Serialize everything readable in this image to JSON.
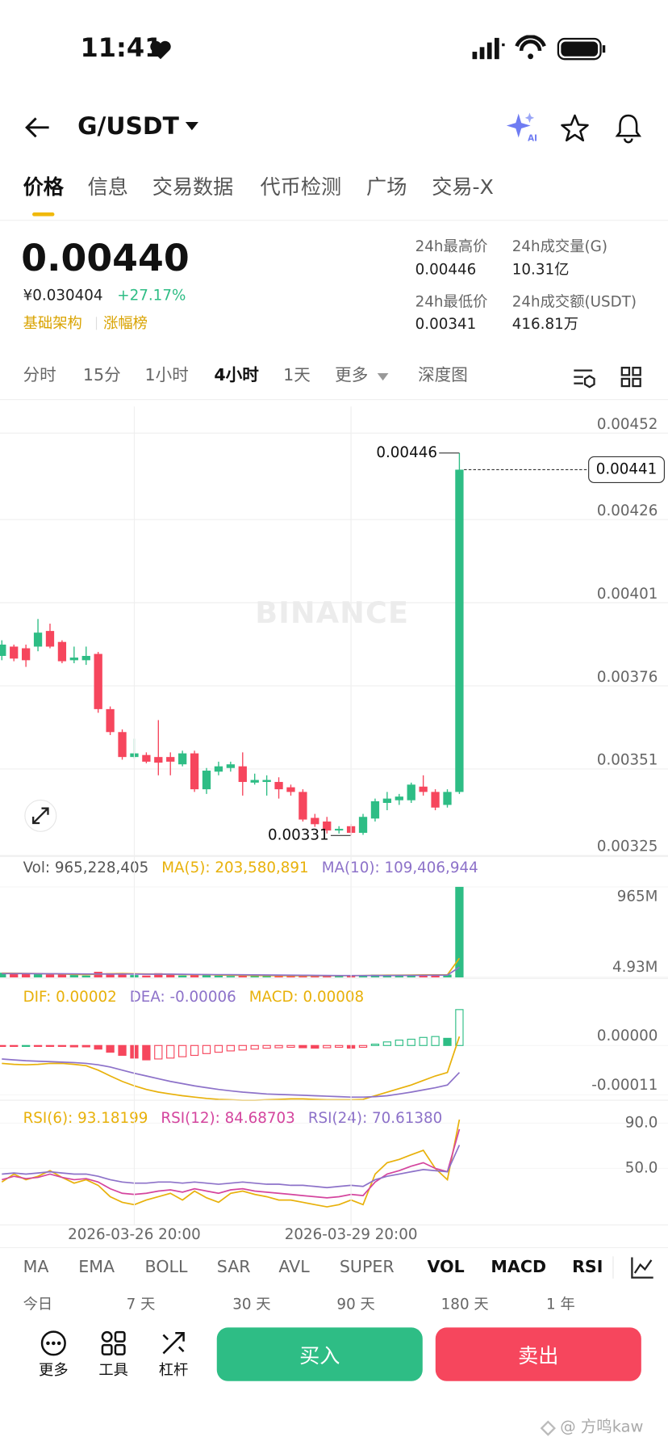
{
  "status_bar": {
    "time": "11:41"
  },
  "header": {
    "pair": "G/USDT"
  },
  "tabs": [
    "价格",
    "信息",
    "交易数据",
    "代币检测",
    "广场",
    "交易-X"
  ],
  "ticker": {
    "price": "0.00440",
    "cny": "¥0.030404",
    "change": "+27.17%",
    "tags": [
      "基础架构",
      "涨幅榜"
    ],
    "stats": [
      {
        "label": "24h最高价",
        "value": "0.00446"
      },
      {
        "label": "24h成交量(G)",
        "value": "10.31亿"
      },
      {
        "label": "24h最低价",
        "value": "0.00341"
      },
      {
        "label": "24h成交额(USDT)",
        "value": "416.81万"
      }
    ]
  },
  "intervals": [
    "分时",
    "15分",
    "1小时",
    "4小时",
    "1天",
    "更多",
    "深度图"
  ],
  "chart_data": [
    {
      "type": "candlestick",
      "watermark": "BINANCE",
      "up_color": "#2ebd85",
      "down_color": "#f6465d",
      "grid": true,
      "ylim": [
        0.00325,
        0.0046
      ],
      "yticks": [
        0.00452,
        0.00426,
        0.00401,
        0.00376,
        0.00351,
        0.00325
      ],
      "max_label": 0.00446,
      "min_label": 0.00331,
      "last_price": 0.00441,
      "open": [
        0.00385,
        0.003878,
        0.003873,
        0.003878,
        0.003925,
        0.003892,
        0.003837,
        0.003837,
        0.003856,
        0.00369,
        0.003621,
        0.003546,
        0.003552,
        0.003546,
        0.003546,
        0.003524,
        0.003557,
        0.003449,
        0.003502,
        0.003513,
        0.003518,
        0.003469,
        0.003471,
        0.003471,
        0.003455,
        0.003441,
        0.003363,
        0.003352,
        0.003325,
        0.003338,
        0.003318,
        0.003361,
        0.003408,
        0.003416,
        0.003416,
        0.003457,
        0.003441,
        0.003402,
        0.003441
      ],
      "high": [
        0.003897,
        0.003884,
        0.003884,
        0.003961,
        0.003947,
        0.003897,
        0.003878,
        0.003878,
        0.003862,
        0.003698,
        0.003629,
        0.003601,
        0.00356,
        0.003657,
        0.00356,
        0.003565,
        0.003565,
        0.003513,
        0.003532,
        0.003532,
        0.00356,
        0.003496,
        0.003491,
        0.003485,
        0.003463,
        0.003449,
        0.003375,
        0.003366,
        0.003338,
        0.003345,
        0.003375,
        0.003421,
        0.003441,
        0.003435,
        0.003469,
        0.003491,
        0.003449,
        0.003449,
        0.00446
      ],
      "low": [
        0.003837,
        0.003834,
        0.003817,
        0.003864,
        0.003873,
        0.003828,
        0.003828,
        0.003823,
        0.003679,
        0.003612,
        0.003538,
        0.003541,
        0.003527,
        0.003491,
        0.003491,
        0.003518,
        0.003441,
        0.003435,
        0.003491,
        0.003502,
        0.00343,
        0.003463,
        0.00343,
        0.003421,
        0.00343,
        0.003352,
        0.003336,
        0.003316,
        0.003316,
        0.00331,
        0.003312,
        0.003352,
        0.003386,
        0.003402,
        0.003408,
        0.00343,
        0.003386,
        0.003394,
        0.003435
      ],
      "close": [
        0.003884,
        0.003842,
        0.003837,
        0.00392,
        0.003878,
        0.003834,
        0.003845,
        0.00385,
        0.00369,
        0.003621,
        0.003546,
        0.003557,
        0.003532,
        0.003529,
        0.003532,
        0.003557,
        0.003449,
        0.003505,
        0.003518,
        0.003524,
        0.003471,
        0.003477,
        0.003477,
        0.003449,
        0.003441,
        0.003358,
        0.003344,
        0.003325,
        0.00333,
        0.003318,
        0.003366,
        0.003413,
        0.003421,
        0.003427,
        0.003463,
        0.003441,
        0.003394,
        0.003441,
        0.00441
      ]
    },
    {
      "type": "bar",
      "ylim": [
        0,
        965228405
      ],
      "yticks": [
        {
          "value": 965228405,
          "label": "965M"
        },
        {
          "value": 4930000,
          "label": "4.93M"
        }
      ],
      "series": [
        {
          "name": "Vol: 965,228,405",
          "color": "#555555",
          "values": [
            50000000,
            45000000,
            40000000,
            35000000,
            30000000,
            40000000,
            25000000,
            20000000,
            60000000,
            45000000,
            40000000,
            25000000,
            20000000,
            45000000,
            35000000,
            20000000,
            30000000,
            25000000,
            20000000,
            15000000,
            25000000,
            15000000,
            15000000,
            20000000,
            15000000,
            25000000,
            20000000,
            20000000,
            15000000,
            20000000,
            25000000,
            30000000,
            25000000,
            20000000,
            25000000,
            30000000,
            25000000,
            30000000,
            965228405
          ]
        },
        {
          "name": "MA(5): 203,580,891",
          "color": "#e8b10b",
          "values": [
            45000000,
            44000000,
            42000000,
            40000000,
            38000000,
            36000000,
            32000000,
            30000000,
            35000000,
            38000000,
            42000000,
            38000000,
            36000000,
            35000000,
            33000000,
            30000000,
            30000000,
            30000000,
            26000000,
            24000000,
            23000000,
            21000000,
            20000000,
            19000000,
            18000000,
            18000000,
            18000000,
            18000000,
            19000000,
            19000000,
            20000000,
            22000000,
            24000000,
            24000000,
            25000000,
            27000000,
            27000000,
            28000000,
            203580891
          ]
        },
        {
          "name": "MA(10): 109,406,944",
          "color": "#8d72c9",
          "values": [
            40000000,
            40000000,
            40000000,
            39000000,
            38000000,
            38000000,
            37000000,
            36000000,
            36000000,
            35000000,
            36000000,
            35000000,
            34000000,
            34000000,
            34000000,
            33000000,
            32000000,
            31000000,
            30000000,
            29000000,
            28000000,
            27000000,
            26000000,
            25000000,
            24000000,
            23000000,
            22000000,
            21000000,
            20000000,
            20000000,
            20000000,
            21000000,
            21000000,
            22000000,
            22000000,
            23000000,
            24000000,
            25000000,
            109406944
          ]
        }
      ]
    },
    {
      "type": "macd",
      "ylim": [
        -0.00012,
        9e-05
      ],
      "yticks": [
        {
          "value": 0,
          "label": "0.00000"
        },
        -0.00011
      ],
      "series": [
        {
          "name": "DIF: 0.00002",
          "color": "#e8b10b",
          "values": [
            -4e-05,
            -4.2e-05,
            -4.3e-05,
            -4.2e-05,
            -4e-05,
            -4e-05,
            -4.2e-05,
            -4.5e-05,
            -5.5e-05,
            -6.8e-05,
            -8e-05,
            -9e-05,
            -9.8e-05,
            -0.000104,
            -0.000108,
            -0.000112,
            -0.000115,
            -0.000118,
            -0.00012,
            -0.000121,
            -0.000122,
            -0.000122,
            -0.000121,
            -0.00012,
            -0.000119,
            -0.000119,
            -0.00012,
            -0.000121,
            -0.000121,
            -0.000121,
            -0.00012,
            -0.000112,
            -0.000104,
            -9.6e-05,
            -8.8e-05,
            -7.8e-05,
            -6.8e-05,
            -6e-05,
            2e-05
          ]
        },
        {
          "name": "DEA: -0.00006",
          "color": "#8d72c9",
          "values": [
            -3e-05,
            -3.2e-05,
            -3.4e-05,
            -3.5e-05,
            -3.6e-05,
            -3.7e-05,
            -3.8e-05,
            -4e-05,
            -4.3e-05,
            -4.8e-05,
            -5.5e-05,
            -6.2e-05,
            -6.8e-05,
            -7.4e-05,
            -8e-05,
            -8.5e-05,
            -9e-05,
            -9.4e-05,
            -9.8e-05,
            -0.000101,
            -0.000104,
            -0.000106,
            -0.000108,
            -0.000109,
            -0.00011,
            -0.000111,
            -0.000112,
            -0.000113,
            -0.000114,
            -0.000115,
            -0.000115,
            -0.000114,
            -0.000112,
            -0.000108,
            -0.000104,
            -9.9e-05,
            -9.4e-05,
            -8.8e-05,
            -6e-05
          ]
        }
      ],
      "histogram": {
        "name": "MACD: 0.00008",
        "color": "#e8b10b",
        "values": [
          -2e-06,
          -1e-06,
          0,
          -1e-06,
          -1e-06,
          -2e-06,
          -3e-06,
          -3e-06,
          -8e-06,
          -1.5e-05,
          -2.2e-05,
          -2.8e-05,
          -3.2e-05,
          -3e-05,
          -2.8e-05,
          -2.5e-05,
          -2.2e-05,
          -1.8e-05,
          -1.5e-05,
          -1.2e-05,
          -1e-05,
          -8e-06,
          -6e-06,
          -5e-06,
          -4e-06,
          -5e-06,
          -6e-06,
          -5e-06,
          -4e-06,
          -6e-06,
          -4e-06,
          3e-06,
          8e-06,
          1.2e-05,
          1.4e-05,
          1.8e-05,
          2e-05,
          1.6e-05,
          8e-05
        ]
      }
    },
    {
      "type": "line",
      "ylim": [
        0,
        100
      ],
      "yticks": [
        {
          "value": 90,
          "label": "90.0"
        },
        {
          "value": 50,
          "label": "50.0"
        }
      ],
      "categories": [
        null,
        null,
        null,
        null,
        null,
        null,
        null,
        null,
        null,
        null,
        null,
        "2026-03-26 20:00",
        null,
        null,
        null,
        null,
        null,
        null,
        null,
        null,
        null,
        null,
        null,
        null,
        null,
        null,
        null,
        null,
        null,
        "2026-03-29 20:00",
        null,
        null,
        null,
        null,
        null,
        null,
        null,
        null,
        null
      ],
      "series": [
        {
          "name": "RSI(6): 93.18199",
          "color": "#e8b10b",
          "values": [
            38,
            45,
            40,
            43,
            48,
            42,
            37,
            40,
            35,
            25,
            20,
            18,
            22,
            25,
            28,
            22,
            30,
            24,
            20,
            28,
            30,
            27,
            25,
            22,
            22,
            20,
            18,
            16,
            18,
            22,
            18,
            45,
            55,
            58,
            62,
            66,
            50,
            40,
            93.18199
          ]
        },
        {
          "name": "RSI(12): 84.68703",
          "color": "#d4459e",
          "values": [
            40,
            43,
            41,
            42,
            45,
            42,
            40,
            41,
            38,
            32,
            28,
            27,
            28,
            30,
            31,
            29,
            32,
            30,
            28,
            31,
            32,
            30,
            29,
            28,
            27,
            26,
            25,
            24,
            25,
            27,
            26,
            38,
            45,
            48,
            52,
            55,
            50,
            47,
            84.68703
          ]
        },
        {
          "name": "RSI(24): 70.61380",
          "color": "#8d72c9",
          "values": [
            45,
            46,
            45,
            46,
            47,
            46,
            45,
            45,
            43,
            40,
            38,
            37,
            37,
            38,
            38,
            37,
            38,
            37,
            36,
            37,
            38,
            37,
            36,
            36,
            35,
            35,
            34,
            33,
            34,
            35,
            34,
            40,
            43,
            45,
            47,
            49,
            48,
            47,
            70.6138
          ]
        }
      ]
    }
  ],
  "indicator_tabs": [
    "MA",
    "EMA",
    "BOLL",
    "SAR",
    "AVL",
    "SUPER",
    "VOL",
    "MACD",
    "RSI"
  ],
  "ranges": [
    "今日",
    "7 天",
    "30 天",
    "90 天",
    "180 天",
    "1 年"
  ],
  "actions": [
    "更多",
    "工具",
    "杠杆"
  ],
  "buy": "买入",
  "sell": "卖出",
  "watermark": "@ 方鸣kaw"
}
